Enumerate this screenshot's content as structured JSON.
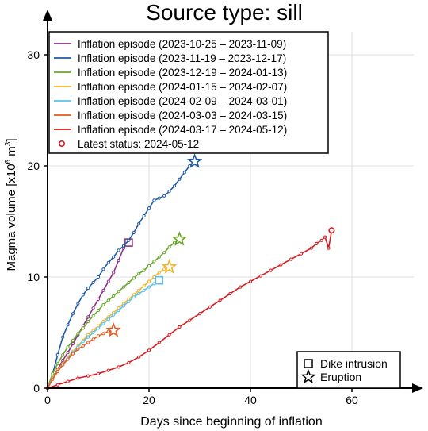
{
  "chart_data": {
    "type": "line",
    "title": "Source type: sill",
    "xlabel": "Days since beginning of inflation",
    "ylabel_main": "Magma volume [x10",
    "ylabel_sup": "6",
    "ylabel_unit": " m",
    "ylabel_sup2": "3",
    "ylabel_end": "]",
    "xlim": [
      0,
      72
    ],
    "ylim": [
      0,
      32.5
    ],
    "xticks": [
      0,
      20,
      40,
      60
    ],
    "yticks": [
      0,
      10,
      20,
      30
    ],
    "grid": true,
    "legend_placement": "top-left",
    "series": [
      {
        "name": "Inflation episode (2023-10-25 – 2023-11-09)",
        "color": "#8b2f8b",
        "end_marker": "square",
        "points": [
          [
            0,
            0
          ],
          [
            1,
            0.9
          ],
          [
            2,
            1.7
          ],
          [
            3,
            2.5
          ],
          [
            4,
            3.2
          ],
          [
            5,
            4.0
          ],
          [
            6,
            4.8
          ],
          [
            7,
            5.6
          ],
          [
            8,
            6.4
          ],
          [
            9,
            7.2
          ],
          [
            10,
            8.0
          ],
          [
            11,
            8.8
          ],
          [
            12,
            9.6
          ],
          [
            13,
            10.4
          ],
          [
            14,
            11.5
          ],
          [
            15,
            12.6
          ],
          [
            16,
            13.1
          ]
        ]
      },
      {
        "name": "Inflation episode (2023-11-19 – 2023-12-17)",
        "color": "#1f5aa6",
        "end_marker": "star",
        "points": [
          [
            0,
            0
          ],
          [
            1,
            1.3
          ],
          [
            2,
            3.0
          ],
          [
            3,
            4.6
          ],
          [
            4,
            5.7
          ],
          [
            5,
            6.7
          ],
          [
            6,
            7.6
          ],
          [
            7,
            8.4
          ],
          [
            8,
            9.0
          ],
          [
            9,
            9.5
          ],
          [
            10,
            10.0
          ],
          [
            11,
            10.7
          ],
          [
            12,
            11.3
          ],
          [
            13,
            11.8
          ],
          [
            14,
            12.4
          ],
          [
            15,
            12.8
          ],
          [
            16,
            13.3
          ],
          [
            17,
            14.0
          ],
          [
            18,
            14.8
          ],
          [
            19,
            15.5
          ],
          [
            20,
            16.2
          ],
          [
            21,
            16.9
          ],
          [
            22,
            17.1
          ],
          [
            23,
            17.3
          ],
          [
            24,
            17.7
          ],
          [
            25,
            18.2
          ],
          [
            26,
            18.8
          ],
          [
            27,
            19.4
          ],
          [
            28,
            20.0
          ],
          [
            29,
            20.4
          ]
        ]
      },
      {
        "name": "Inflation episode (2023-12-19 – 2024-01-13)",
        "color": "#6aa52b",
        "end_marker": "star",
        "points": [
          [
            0,
            0
          ],
          [
            1,
            1.3
          ],
          [
            2,
            2.2
          ],
          [
            3,
            3.0
          ],
          [
            4,
            3.7
          ],
          [
            5,
            4.3
          ],
          [
            6,
            4.9
          ],
          [
            7,
            5.4
          ],
          [
            8,
            6.0
          ],
          [
            9,
            6.5
          ],
          [
            10,
            7.0
          ],
          [
            11,
            7.5
          ],
          [
            12,
            7.9
          ],
          [
            13,
            8.3
          ],
          [
            14,
            8.7
          ],
          [
            15,
            9.1
          ],
          [
            16,
            9.5
          ],
          [
            17,
            9.9
          ],
          [
            18,
            10.3
          ],
          [
            19,
            10.6
          ],
          [
            20,
            11.0
          ],
          [
            21,
            11.4
          ],
          [
            22,
            11.8
          ],
          [
            23,
            12.2
          ],
          [
            24,
            12.7
          ],
          [
            25,
            13.1
          ],
          [
            26,
            13.4
          ]
        ]
      },
      {
        "name": "Inflation episode (2024-01-15 – 2024-02-07)",
        "color": "#f0b323",
        "end_marker": "star",
        "points": [
          [
            0,
            0
          ],
          [
            1,
            0.9
          ],
          [
            2,
            1.6
          ],
          [
            3,
            2.2
          ],
          [
            4,
            2.8
          ],
          [
            5,
            3.3
          ],
          [
            6,
            3.8
          ],
          [
            7,
            4.3
          ],
          [
            8,
            4.8
          ],
          [
            9,
            5.2
          ],
          [
            10,
            5.6
          ],
          [
            11,
            6.0
          ],
          [
            12,
            6.4
          ],
          [
            13,
            6.8
          ],
          [
            14,
            7.2
          ],
          [
            15,
            7.6
          ],
          [
            16,
            8.0
          ],
          [
            17,
            8.4
          ],
          [
            18,
            8.8
          ],
          [
            19,
            9.2
          ],
          [
            20,
            9.6
          ],
          [
            21,
            10.0
          ],
          [
            22,
            10.4
          ],
          [
            23,
            10.7
          ],
          [
            24,
            10.9
          ]
        ]
      },
      {
        "name": "Inflation episode (2024-02-09 – 2024-03-01)",
        "color": "#5bc0eb",
        "end_marker": "square",
        "points": [
          [
            0,
            0
          ],
          [
            1,
            0.8
          ],
          [
            2,
            1.5
          ],
          [
            3,
            2.1
          ],
          [
            4,
            2.7
          ],
          [
            5,
            3.2
          ],
          [
            6,
            3.7
          ],
          [
            7,
            4.2
          ],
          [
            8,
            4.6
          ],
          [
            9,
            5.0
          ],
          [
            10,
            5.4
          ],
          [
            11,
            5.8
          ],
          [
            12,
            6.2
          ],
          [
            13,
            6.6
          ],
          [
            14,
            7.0
          ],
          [
            15,
            7.4
          ],
          [
            16,
            7.8
          ],
          [
            17,
            8.2
          ],
          [
            18,
            8.5
          ],
          [
            19,
            8.8
          ],
          [
            20,
            9.1
          ],
          [
            21,
            9.4
          ],
          [
            22,
            9.7
          ]
        ]
      },
      {
        "name": "Inflation episode (2024-03-03 – 2024-03-15)",
        "color": "#e35a1f",
        "end_marker": "star",
        "points": [
          [
            0,
            0
          ],
          [
            1,
            0.8
          ],
          [
            2,
            1.5
          ],
          [
            3,
            2.1
          ],
          [
            4,
            2.6
          ],
          [
            5,
            3.1
          ],
          [
            6,
            3.5
          ],
          [
            7,
            3.8
          ],
          [
            8,
            4.1
          ],
          [
            9,
            4.4
          ],
          [
            10,
            4.7
          ],
          [
            11,
            4.9
          ],
          [
            12,
            5.1
          ],
          [
            13,
            5.2
          ]
        ]
      },
      {
        "name": "Inflation episode (2024-03-17 – 2024-05-12)",
        "color": "#d7191c",
        "end_marker": "none",
        "points": [
          [
            0,
            0
          ],
          [
            2,
            0.3
          ],
          [
            4,
            0.6
          ],
          [
            6,
            0.9
          ],
          [
            8,
            1.1
          ],
          [
            10,
            1.3
          ],
          [
            12,
            1.6
          ],
          [
            14,
            1.9
          ],
          [
            16,
            2.3
          ],
          [
            18,
            2.8
          ],
          [
            20,
            3.4
          ],
          [
            22,
            4.1
          ],
          [
            24,
            4.8
          ],
          [
            26,
            5.5
          ],
          [
            28,
            6.1
          ],
          [
            30,
            6.7
          ],
          [
            32,
            7.3
          ],
          [
            34,
            7.9
          ],
          [
            36,
            8.5
          ],
          [
            38,
            9.1
          ],
          [
            40,
            9.6
          ],
          [
            42,
            10.1
          ],
          [
            44,
            10.6
          ],
          [
            46,
            11.1
          ],
          [
            48,
            11.6
          ],
          [
            50,
            12.1
          ],
          [
            52,
            12.6
          ],
          [
            53,
            13.0
          ],
          [
            54,
            13.3
          ],
          [
            54.7,
            13.6
          ],
          [
            55.4,
            12.6
          ],
          [
            56,
            14.2
          ]
        ]
      },
      {
        "name": "Latest status: 2024-05-12",
        "color": "#d7191c",
        "type": "marker",
        "points": [
          [
            56,
            14.2
          ]
        ]
      }
    ],
    "markers_legend": [
      {
        "symbol": "square",
        "label": "Dike intrusion"
      },
      {
        "symbol": "star",
        "label": "Eruption"
      }
    ]
  }
}
